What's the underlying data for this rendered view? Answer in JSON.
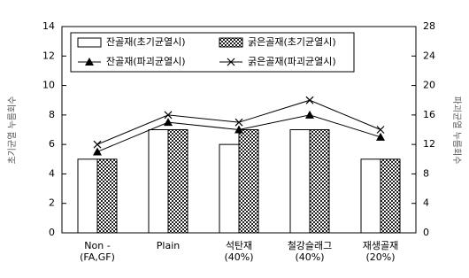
{
  "chart_data": {
    "type": "bar-line",
    "categories": [
      [
        "Non -",
        "(FA,GF)"
      ],
      [
        "Plain"
      ],
      [
        "석탄재",
        "(40%)"
      ],
      [
        "철강슬래그",
        "(40%)"
      ],
      [
        "재생골재",
        "(20%)"
      ]
    ],
    "ylabel": "초기균열 누름회수",
    "y2label": "파괴균열 누름회수",
    "ylim": [
      0,
      14
    ],
    "yticks": [
      0,
      2,
      4,
      6,
      8,
      10,
      12,
      14
    ],
    "y2lim": [
      0,
      28
    ],
    "y2ticks": [
      0,
      4,
      8,
      12,
      16,
      20,
      24,
      28
    ],
    "series": [
      {
        "name": "잔골재(초기균열시)",
        "kind": "bar",
        "color": "#ffffff",
        "values": [
          5,
          7,
          6,
          7,
          5
        ]
      },
      {
        "name": "굵은골재(초기균열시)",
        "kind": "bar",
        "color": "#222222",
        "values": [
          5,
          7,
          7,
          7,
          5
        ]
      },
      {
        "name": "잔골재(파괴균열시)",
        "kind": "line",
        "marker": "triangle",
        "axis": "y2",
        "color": "#000000",
        "values": [
          11,
          15,
          14,
          16,
          13
        ]
      },
      {
        "name": "굵은골재(파괴균열시)",
        "kind": "line",
        "marker": "x",
        "axis": "y2",
        "color": "#000000",
        "values": [
          12,
          16,
          15,
          18,
          14
        ]
      }
    ]
  }
}
